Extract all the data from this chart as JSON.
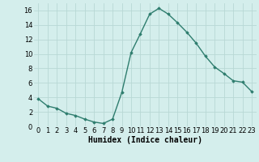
{
  "x": [
    0,
    1,
    2,
    3,
    4,
    5,
    6,
    7,
    8,
    9,
    10,
    11,
    12,
    13,
    14,
    15,
    16,
    17,
    18,
    19,
    20,
    21,
    22,
    23
  ],
  "y": [
    3.8,
    2.8,
    2.5,
    1.8,
    1.5,
    1.0,
    0.6,
    0.4,
    1.0,
    4.7,
    10.2,
    12.8,
    15.5,
    16.3,
    15.5,
    14.3,
    13.0,
    11.5,
    9.7,
    8.2,
    7.3,
    6.3,
    6.1,
    4.8
  ],
  "line_color": "#2e7d6e",
  "marker": "D",
  "marker_size": 1.8,
  "line_width": 1.0,
  "xlabel": "Humidex (Indice chaleur)",
  "xlim": [
    -0.5,
    23.5
  ],
  "ylim": [
    0,
    17
  ],
  "yticks": [
    0,
    2,
    4,
    6,
    8,
    10,
    12,
    14,
    16
  ],
  "xticks": [
    0,
    1,
    2,
    3,
    4,
    5,
    6,
    7,
    8,
    9,
    10,
    11,
    12,
    13,
    14,
    15,
    16,
    17,
    18,
    19,
    20,
    21,
    22,
    23
  ],
  "bg_color": "#d4eeec",
  "grid_color": "#b8d8d5",
  "xlabel_fontsize": 7,
  "tick_fontsize": 6
}
